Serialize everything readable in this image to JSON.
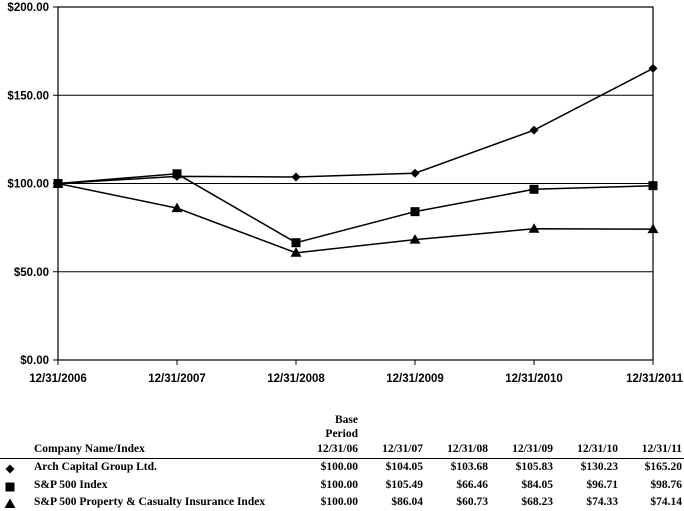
{
  "chart_data": {
    "type": "line",
    "categories": [
      "12/31/2006",
      "12/31/2007",
      "12/31/2008",
      "12/31/2009",
      "12/31/2010",
      "12/31/2011"
    ],
    "ylim": [
      0,
      200
    ],
    "yticks": [
      "$0.00",
      "$50.00",
      "$100.00",
      "$150.00",
      "$200.00"
    ],
    "ytick_values": [
      0,
      50,
      100,
      150,
      200
    ],
    "grid": "horizontal",
    "series": [
      {
        "name": "Arch Capital Group Ltd.",
        "marker": "diamond",
        "values": [
          100.0,
          104.05,
          103.68,
          105.83,
          130.23,
          165.2
        ]
      },
      {
        "name": "S&P 500 Index",
        "marker": "square",
        "values": [
          100.0,
          105.49,
          66.46,
          84.05,
          96.71,
          98.76
        ]
      },
      {
        "name": "S&P 500 Property & Casualty Insurance Index",
        "marker": "triangle",
        "values": [
          100.0,
          86.04,
          60.73,
          68.23,
          74.33,
          74.14
        ]
      }
    ]
  },
  "table": {
    "name_header": "Company Name/Index",
    "base_header": [
      "Base",
      "Period",
      "12/31/06"
    ],
    "date_headers": [
      "12/31/07",
      "12/31/08",
      "12/31/09",
      "12/31/10",
      "12/31/11"
    ],
    "rows": [
      {
        "label": "Arch Capital Group Ltd.",
        "marker": "diamond",
        "cells": [
          "$100.00",
          "$104.05",
          "$103.68",
          "$105.83",
          "$130.23",
          "$165.20"
        ]
      },
      {
        "label": "S&P 500 Index",
        "marker": "square",
        "cells": [
          "$100.00",
          "$105.49",
          "$66.46",
          "$84.05",
          "$96.71",
          "$98.76"
        ]
      },
      {
        "label": "S&P 500 Property & Casualty Insurance Index",
        "marker": "triangle",
        "cells": [
          "$100.00",
          "$86.04",
          "$60.73",
          "$68.23",
          "$74.33",
          "$74.14"
        ]
      }
    ]
  }
}
